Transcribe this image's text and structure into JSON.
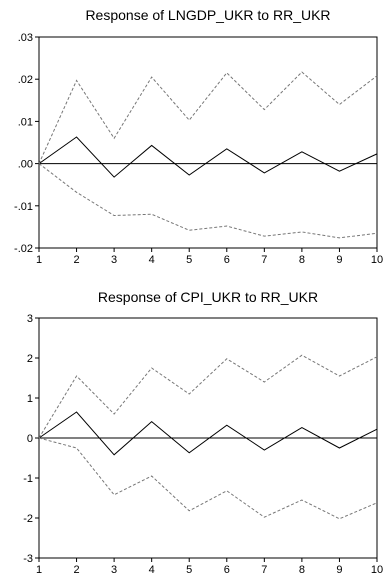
{
  "chart_data": [
    {
      "type": "line",
      "title": "Response of LNGDP_UKR to RR_UKR",
      "x": [
        1,
        2,
        3,
        4,
        5,
        6,
        7,
        8,
        9,
        10
      ],
      "ylim": [
        -0.02,
        0.03
      ],
      "yticks": [
        ".03",
        ".02",
        ".01",
        ".00",
        "-.01",
        "-.02"
      ],
      "ytick_values": [
        0.03,
        0.02,
        0.01,
        0.0,
        -0.01,
        -0.02
      ],
      "series": [
        {
          "role": "response",
          "style": "solid",
          "values": [
            0.0,
            0.0063,
            -0.0032,
            0.0043,
            -0.0027,
            0.0035,
            -0.0022,
            0.0028,
            -0.0018,
            0.0023
          ]
        },
        {
          "role": "upper",
          "style": "dashed",
          "values": [
            0.0,
            0.0197,
            0.006,
            0.0205,
            0.0103,
            0.0215,
            0.0128,
            0.0217,
            0.014,
            0.0208
          ]
        },
        {
          "role": "lower",
          "style": "dashed",
          "values": [
            0.0,
            -0.0068,
            -0.0123,
            -0.012,
            -0.0158,
            -0.0148,
            -0.0172,
            -0.0162,
            -0.0176,
            -0.0165
          ]
        }
      ]
    },
    {
      "type": "line",
      "title": "Response of CPI_UKR to RR_UKR",
      "x": [
        1,
        2,
        3,
        4,
        5,
        6,
        7,
        8,
        9,
        10
      ],
      "ylim": [
        -3,
        3
      ],
      "yticks": [
        "3",
        "2",
        "1",
        "0",
        "-1",
        "-2",
        "-3"
      ],
      "ytick_values": [
        3,
        2,
        1,
        0,
        -1,
        -2,
        -3
      ],
      "series": [
        {
          "role": "response",
          "style": "solid",
          "values": [
            0.0,
            0.65,
            -0.42,
            0.41,
            -0.37,
            0.32,
            -0.3,
            0.26,
            -0.25,
            0.22
          ]
        },
        {
          "role": "upper",
          "style": "dashed",
          "values": [
            0.0,
            1.55,
            0.6,
            1.75,
            1.1,
            1.98,
            1.4,
            2.07,
            1.55,
            2.03
          ]
        },
        {
          "role": "lower",
          "style": "dashed",
          "values": [
            0.0,
            -0.25,
            -1.42,
            -0.95,
            -1.82,
            -1.32,
            -1.98,
            -1.55,
            -2.02,
            -1.62
          ]
        }
      ]
    }
  ]
}
